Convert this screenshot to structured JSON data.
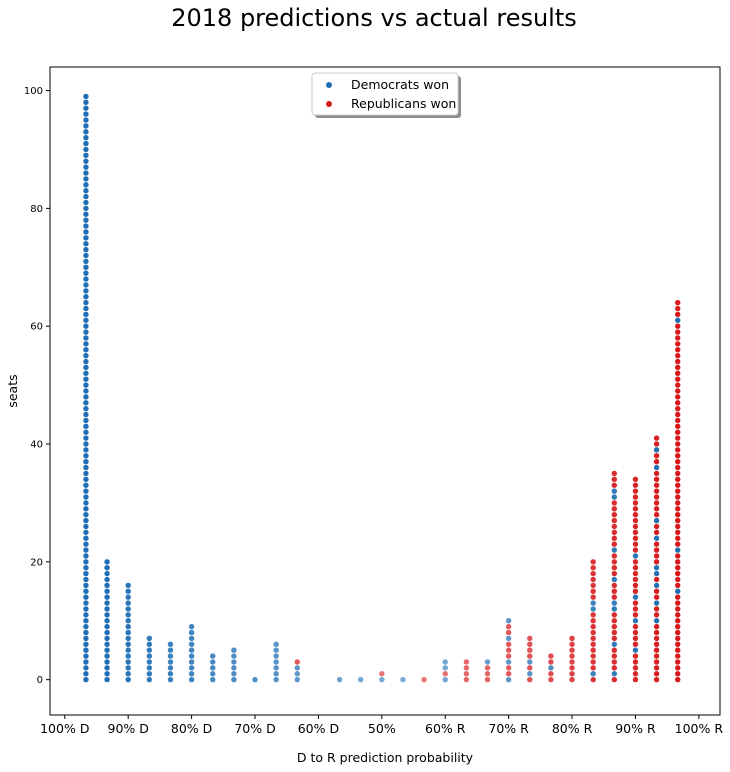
{
  "chart_data": {
    "type": "scatter",
    "title": "2018 predictions vs actual results",
    "xlabel": "D to R prediction probability",
    "ylabel": "seats",
    "ylim": [
      -6,
      104
    ],
    "y_ticks": [
      0,
      20,
      40,
      60,
      80,
      100
    ],
    "x_ticks": [
      {
        "pos": 1,
        "label": "100% D"
      },
      {
        "pos": 4,
        "label": "90% D"
      },
      {
        "pos": 7,
        "label": "80% D"
      },
      {
        "pos": 10,
        "label": "70% D"
      },
      {
        "pos": 13,
        "label": "60% D"
      },
      {
        "pos": 16,
        "label": "50%"
      },
      {
        "pos": 19,
        "label": "60% R"
      },
      {
        "pos": 22,
        "label": "70% R"
      },
      {
        "pos": 25,
        "label": "80% R"
      },
      {
        "pos": 28,
        "label": "90% R"
      },
      {
        "pos": 31,
        "label": "100% R"
      }
    ],
    "xlim": [
      0.3,
      32.0
    ],
    "grid": false,
    "legend_position": "top-center",
    "series": [
      {
        "name": "Democrats won",
        "color": "#1f6fb4"
      },
      {
        "name": "Republicans won",
        "color": "#d7191c"
      }
    ],
    "columns": [
      {
        "x": 2,
        "total": 100,
        "republican_seats": [],
        "opacity": 1.0
      },
      {
        "x": 3,
        "total": 21,
        "republican_seats": [],
        "opacity": 1.0
      },
      {
        "x": 4,
        "total": 17,
        "republican_seats": [],
        "opacity": 0.95
      },
      {
        "x": 5,
        "total": 8,
        "republican_seats": [],
        "opacity": 0.92
      },
      {
        "x": 6,
        "total": 7,
        "republican_seats": [],
        "opacity": 0.88
      },
      {
        "x": 7,
        "total": 10,
        "republican_seats": [],
        "opacity": 0.85
      },
      {
        "x": 8,
        "total": 5,
        "republican_seats": [],
        "opacity": 0.82
      },
      {
        "x": 9,
        "total": 6,
        "republican_seats": [],
        "opacity": 0.8
      },
      {
        "x": 10,
        "total": 1,
        "republican_seats": [],
        "opacity": 0.78
      },
      {
        "x": 11,
        "total": 7,
        "republican_seats": [],
        "opacity": 0.75
      },
      {
        "x": 12,
        "total": 4,
        "republican_seats": [
          3
        ],
        "opacity": 0.72
      },
      {
        "x": 14,
        "total": 1,
        "republican_seats": [],
        "opacity": 0.65
      },
      {
        "x": 15,
        "total": 1,
        "republican_seats": [],
        "opacity": 0.62
      },
      {
        "x": 16,
        "total": 2,
        "republican_seats": [
          1
        ],
        "opacity": 0.6
      },
      {
        "x": 17,
        "total": 1,
        "republican_seats": [],
        "opacity": 0.6
      },
      {
        "x": 18,
        "total": 1,
        "republican_seats": [
          0
        ],
        "opacity": 0.6
      },
      {
        "x": 19,
        "total": 4,
        "republican_seats": [
          1
        ],
        "opacity": 0.62
      },
      {
        "x": 20,
        "total": 4,
        "republican_seats": [
          0,
          1,
          2,
          3
        ],
        "opacity": 0.65
      },
      {
        "x": 21,
        "total": 4,
        "republican_seats": [
          0,
          1,
          2
        ],
        "opacity": 0.68
      },
      {
        "x": 22,
        "total": 11,
        "republican_seats": [
          1,
          2,
          4,
          5,
          6,
          8,
          9
        ],
        "opacity": 0.72
      },
      {
        "x": 23,
        "total": 8,
        "republican_seats": [
          0,
          2,
          4,
          5,
          6,
          7
        ],
        "opacity": 0.75
      },
      {
        "x": 24,
        "total": 5,
        "republican_seats": [
          0,
          1,
          3,
          4
        ],
        "opacity": 0.78
      },
      {
        "x": 25,
        "total": 8,
        "republican_seats": [
          0,
          1,
          2,
          3,
          4,
          5,
          6,
          7
        ],
        "opacity": 0.82
      },
      {
        "x": 26,
        "total": 21,
        "republican_seats": [
          0,
          2,
          3,
          4,
          5,
          6,
          7,
          8,
          9,
          10,
          11,
          14,
          15,
          16,
          17,
          18,
          19,
          20
        ],
        "opacity": 0.88
      },
      {
        "x": 27,
        "total": 36,
        "republican_seats": [
          0,
          2,
          3,
          4,
          5,
          7,
          8,
          9,
          10,
          11,
          14,
          15,
          16,
          18,
          19,
          20,
          21,
          23,
          24,
          25,
          26,
          27,
          28,
          29,
          30,
          33,
          34,
          35
        ],
        "opacity": 0.92
      },
      {
        "x": 28,
        "total": 35,
        "republican_seats": [
          0,
          1,
          2,
          3,
          4,
          6,
          7,
          8,
          9,
          11,
          12,
          13,
          15,
          16,
          17,
          18,
          19,
          20,
          22,
          23,
          24,
          25,
          26,
          27,
          28,
          29,
          30,
          31,
          32,
          33,
          34
        ],
        "opacity": 0.95
      },
      {
        "x": 29,
        "total": 42,
        "republican_seats": [
          0,
          1,
          2,
          3,
          4,
          5,
          6,
          7,
          8,
          9,
          11,
          12,
          14,
          15,
          17,
          20,
          21,
          22,
          23,
          25,
          26,
          28,
          29,
          30,
          31,
          32,
          33,
          34,
          35,
          37,
          38,
          40,
          41
        ],
        "opacity": 0.98
      },
      {
        "x": 30,
        "total": 65,
        "republican_seats": [
          0,
          1,
          2,
          3,
          4,
          5,
          6,
          7,
          8,
          9,
          10,
          11,
          12,
          13,
          14,
          16,
          17,
          18,
          19,
          20,
          21,
          23,
          24,
          25,
          26,
          27,
          28,
          29,
          30,
          31,
          32,
          33,
          34,
          35,
          36,
          37,
          38,
          39,
          40,
          41,
          42,
          43,
          44,
          45,
          46,
          47,
          48,
          49,
          50,
          51,
          52,
          53,
          54,
          55,
          56,
          57,
          58,
          59,
          60,
          62,
          63,
          64
        ],
        "opacity": 1.0
      }
    ]
  }
}
